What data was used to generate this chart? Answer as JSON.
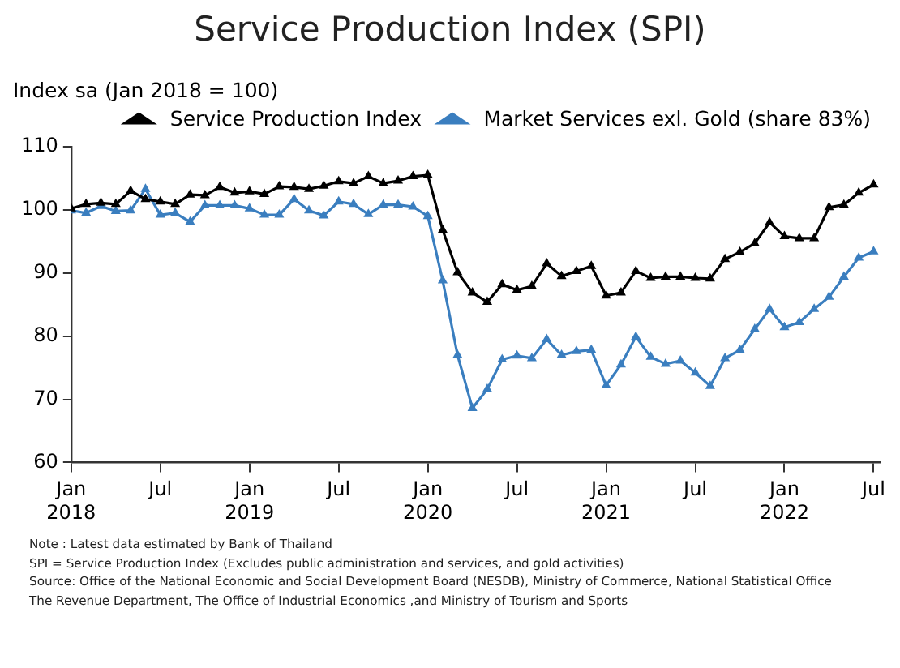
{
  "chart_data": {
    "type": "line",
    "title": "Service Production Index (SPI)",
    "ylabel": "Index sa (Jan 2018 = 100)",
    "x": [
      "2018-01",
      "2018-02",
      "2018-03",
      "2018-04",
      "2018-05",
      "2018-06",
      "2018-07",
      "2018-08",
      "2018-09",
      "2018-10",
      "2018-11",
      "2018-12",
      "2019-01",
      "2019-02",
      "2019-03",
      "2019-04",
      "2019-05",
      "2019-06",
      "2019-07",
      "2019-08",
      "2019-09",
      "2019-10",
      "2019-11",
      "2019-12",
      "2020-01",
      "2020-02",
      "2020-03",
      "2020-04",
      "2020-05",
      "2020-06",
      "2020-07",
      "2020-08",
      "2020-09",
      "2020-10",
      "2020-11",
      "2020-12",
      "2021-01",
      "2021-02",
      "2021-03",
      "2021-04",
      "2021-05",
      "2021-06",
      "2021-07",
      "2021-08",
      "2021-09",
      "2021-10",
      "2021-11",
      "2021-12",
      "2022-01",
      "2022-02",
      "2022-03",
      "2022-04",
      "2022-05",
      "2022-06",
      "2022-07"
    ],
    "series": [
      {
        "name": "Service Production Index",
        "color": "#000000",
        "values": [
          100.2,
          100.9,
          101.1,
          100.9,
          103.0,
          101.7,
          101.3,
          100.9,
          102.4,
          102.3,
          103.6,
          102.7,
          102.9,
          102.5,
          103.7,
          103.6,
          103.3,
          103.8,
          104.5,
          104.2,
          105.3,
          104.2,
          104.6,
          105.3,
          105.5,
          96.8,
          90.1,
          86.9,
          85.4,
          88.2,
          87.3,
          87.9,
          91.5,
          89.5,
          90.3,
          91.1,
          86.4,
          86.9,
          90.3,
          89.2,
          89.4,
          89.4,
          89.2,
          89.1,
          92.2,
          93.3,
          94.7,
          98.0,
          95.8,
          95.5,
          95.5,
          100.4,
          100.8,
          102.7,
          104.0
        ]
      },
      {
        "name": "Market Services exl. Gold (share 83%)",
        "color": "#3a7ebf",
        "values": [
          99.9,
          99.5,
          100.6,
          99.8,
          99.9,
          103.3,
          99.2,
          99.5,
          98.1,
          100.7,
          100.7,
          100.7,
          100.2,
          99.2,
          99.2,
          101.7,
          99.9,
          99.1,
          101.3,
          100.9,
          99.3,
          100.8,
          100.8,
          100.5,
          99.0,
          88.8,
          77.0,
          68.6,
          71.6,
          76.3,
          76.9,
          76.5,
          79.5,
          77.0,
          77.6,
          77.8,
          72.2,
          75.5,
          79.9,
          76.7,
          75.6,
          76.1,
          74.2,
          72.1,
          76.5,
          77.8,
          81.1,
          84.3,
          81.4,
          82.2,
          84.3,
          86.2,
          89.4,
          92.4,
          93.4
        ]
      }
    ],
    "xlim": [
      "2018-01",
      "2022-07-15"
    ],
    "xticks": [
      {
        "value": "2018-01",
        "label": "Jan\n2018"
      },
      {
        "value": "2018-07",
        "label": "Jul"
      },
      {
        "value": "2019-01",
        "label": "Jan\n2019"
      },
      {
        "value": "2019-07",
        "label": "Jul"
      },
      {
        "value": "2020-01",
        "label": "Jan\n2020"
      },
      {
        "value": "2020-07",
        "label": "Jul"
      },
      {
        "value": "2021-01",
        "label": "Jan\n2021"
      },
      {
        "value": "2021-07",
        "label": "Jul"
      },
      {
        "value": "2022-01",
        "label": "Jan\n2022"
      },
      {
        "value": "2022-07",
        "label": "Jul"
      }
    ],
    "ylim": [
      60,
      110
    ],
    "yticks": [
      60,
      70,
      80,
      90,
      100,
      110
    ],
    "grid": false,
    "legend": "top",
    "marker": "triangle",
    "line_style": "solid",
    "annotations": [
      "Note : Latest data estimated by Bank of Thailand",
      "SPI = Service Production Index (Excludes public administration and services, and gold activities)",
      "Source: Office of the National Economic and Social Development Board (NESDB), Ministry of Commerce, National Statistical Office",
      "The Revenue Department, The Office of Industrial Economics ,and Ministry of Tourism and Sports"
    ]
  }
}
